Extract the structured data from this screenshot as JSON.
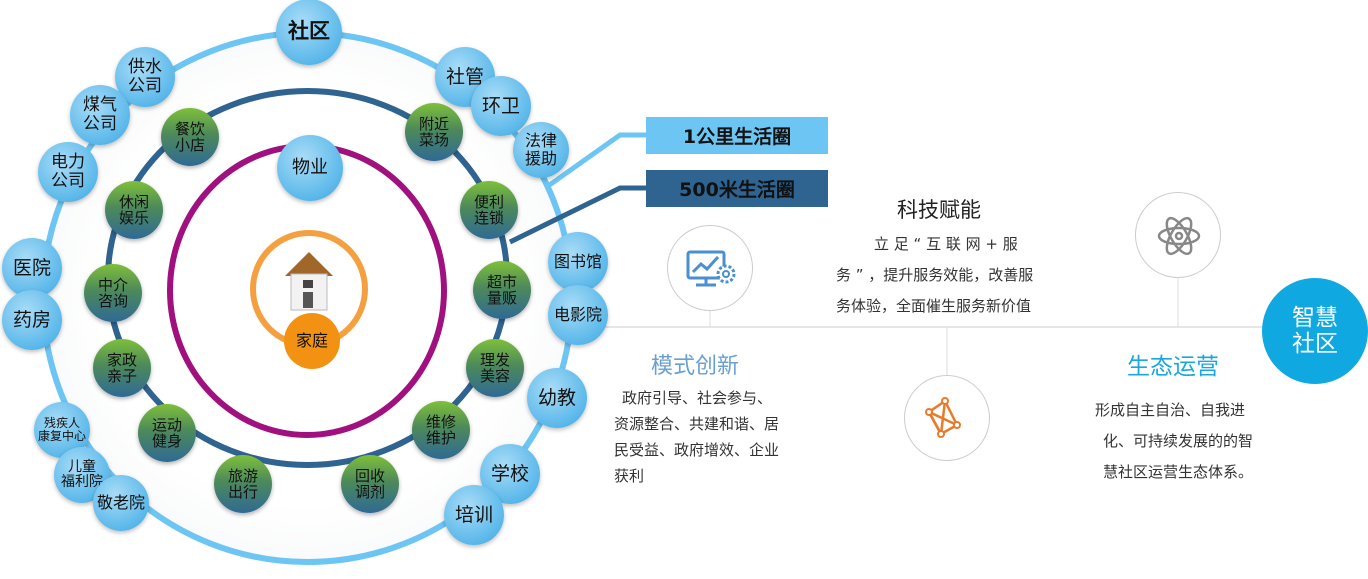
{
  "center": {
    "label": "家庭",
    "icon": "house-icon"
  },
  "inner": {
    "label": "物业"
  },
  "middle": [
    "餐饮\n小店",
    "附近\n菜场",
    "休闲\n娱乐",
    "便利\n连锁",
    "中介\n咨询",
    "超市\n量贩",
    "家政\n亲子",
    "理发\n美容",
    "运动\n健身",
    "维修\n维护",
    "旅游\n出行",
    "回收\n调剂"
  ],
  "outer": [
    "社区",
    "供水\n公司",
    "煤气\n公司",
    "电力\n公司",
    "医院",
    "药房",
    "残疾人\n康复中心",
    "儿童\n福利院",
    "敬老院",
    "社管",
    "环卫",
    "法律\n援助",
    "图书馆",
    "电影院",
    "幼教",
    "学校",
    "培训"
  ],
  "tags": {
    "km": "1公里生活圈",
    "m500": "500米生活圈"
  },
  "tech": {
    "title": "科技赋能",
    "lines": [
      "立 足 “ 互 联 网 + 服",
      "务 ” ，提升服务效能，改善服",
      "务体验，全面催生服务新价值"
    ],
    "icon": "monitor-gear-icon"
  },
  "mode": {
    "title": "模式创新",
    "lines": [
      "政府引导、社会参与、",
      "资源整合、共建和谐、居",
      "民受益、政府增效、企业",
      "获利"
    ],
    "icon": "network-icon"
  },
  "eco": {
    "title": "生态运营",
    "lines": [
      "形成自主自治、自我进",
      "化、可持续发展的的智",
      "慧社区运营生态体系。"
    ],
    "icon": "atom-icon"
  },
  "smart": {
    "label": "智慧\n社区"
  },
  "colors": {
    "outer_ring": "#6cc5f2",
    "middle_ring": "#2f6390",
    "inner_ring": "#a0107e",
    "center_ring": "#f5a040",
    "smart": "#10a8e0",
    "mode_title": "#6aa0d0",
    "eco_title": "#1aa7e0"
  }
}
